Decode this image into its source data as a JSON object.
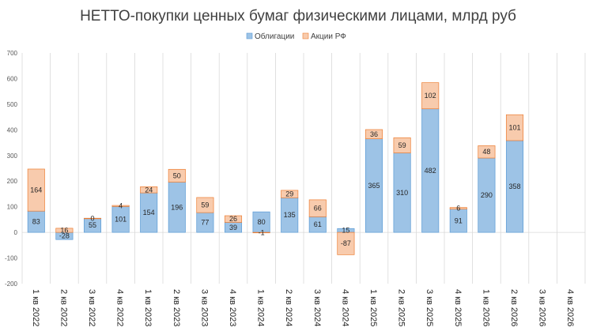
{
  "chart_data": {
    "type": "bar",
    "stacked": true,
    "title": "НЕТТО-покупки ценных бумаг физическими лицами, млрд руб",
    "categories": [
      "1 кв 2022",
      "2 кв 2022",
      "3 кв 2022",
      "4 кв 2022",
      "1 кв 2023",
      "2 кв 2023",
      "3 кв 2023",
      "4 кв 2023",
      "1 кв 2024",
      "2 кв 2024",
      "3 кв 2024",
      "4 кв 2024",
      "1 кв 2025",
      "2 кв 2025",
      "3 кв 2025",
      "4 кв 2025",
      "1 кв 2026",
      "2 кв 2026",
      "3 кв 2026",
      "4 кв 2026"
    ],
    "series": [
      {
        "name": "Облигации",
        "color": "#9dc3e6",
        "values": [
          83,
          -28,
          55,
          101,
          154,
          196,
          77,
          39,
          80,
          135,
          61,
          15,
          365,
          310,
          482,
          91,
          290,
          358,
          null,
          null
        ]
      },
      {
        "name": "Акции РФ",
        "color": "#f8cbad",
        "values": [
          164,
          16,
          0,
          4,
          24,
          50,
          59,
          26,
          -1,
          29,
          66,
          -87,
          36,
          59,
          102,
          6,
          48,
          101,
          null,
          null
        ]
      }
    ],
    "ylim": [
      -200,
      700
    ],
    "yticks": [
      -200,
      -100,
      0,
      100,
      200,
      300,
      400,
      500,
      600,
      700
    ],
    "grid": "vertical",
    "legend": "top-center"
  }
}
